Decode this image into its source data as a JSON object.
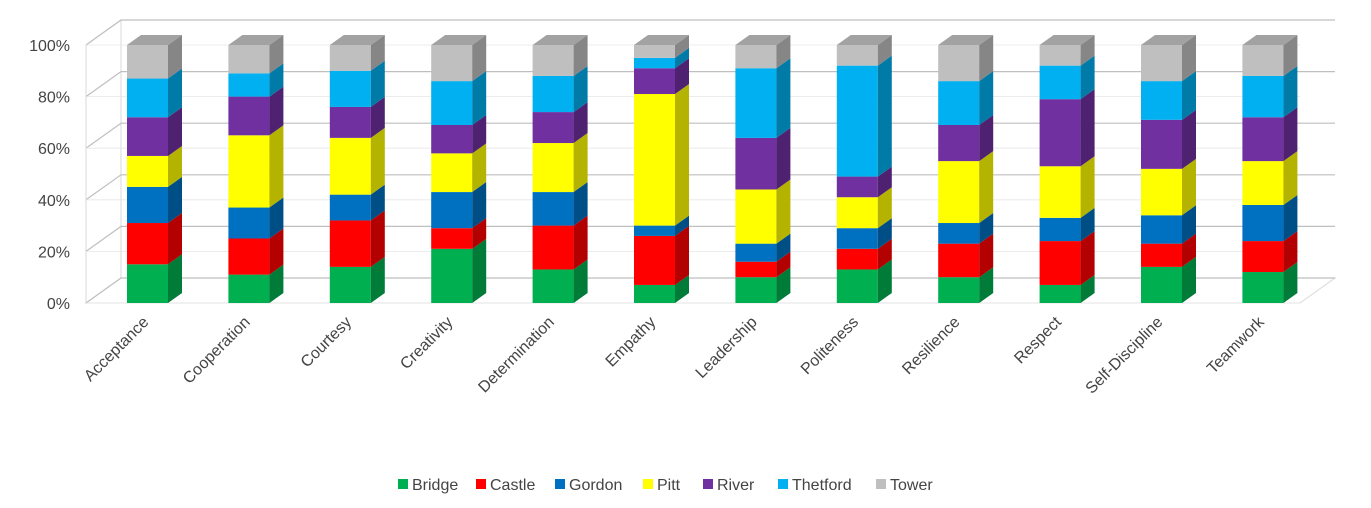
{
  "chart_data": {
    "type": "bar",
    "stacked": true,
    "percent": true,
    "style": "3d-column",
    "categories": [
      "Acceptance",
      "Cooperation",
      "Courtesy",
      "Creativity",
      "Determination",
      "Empathy",
      "Leadership",
      "Politeness",
      "Resilience",
      "Respect",
      "Self-Discipline",
      "Teamwork"
    ],
    "series": [
      {
        "name": "Bridge",
        "color": "#00B050",
        "values": [
          15,
          11,
          14,
          21,
          13,
          7,
          10,
          13,
          10,
          7,
          14,
          12
        ]
      },
      {
        "name": "Castle",
        "color": "#FF0000",
        "values": [
          16,
          14,
          18,
          8,
          17,
          19,
          6,
          8,
          13,
          17,
          9,
          12
        ]
      },
      {
        "name": "Gordon",
        "color": "#0070C0",
        "values": [
          14,
          12,
          10,
          14,
          13,
          4,
          7,
          8,
          8,
          9,
          11,
          14
        ]
      },
      {
        "name": "Pitt",
        "color": "#FFFF00",
        "values": [
          12,
          28,
          22,
          15,
          19,
          51,
          21,
          12,
          24,
          20,
          18,
          17
        ]
      },
      {
        "name": "River",
        "color": "#7030A0",
        "values": [
          15,
          15,
          12,
          11,
          12,
          10,
          20,
          8,
          14,
          26,
          19,
          17
        ]
      },
      {
        "name": "Thetford",
        "color": "#00B0F0",
        "values": [
          15,
          9,
          14,
          17,
          14,
          4,
          27,
          43,
          17,
          13,
          15,
          16
        ]
      },
      {
        "name": "Tower",
        "color": "#BFBFBF",
        "values": [
          13,
          11,
          10,
          14,
          12,
          5,
          9,
          8,
          14,
          8,
          14,
          12
        ]
      }
    ],
    "ylim": [
      0,
      100
    ],
    "yticks": [
      "0%",
      "20%",
      "40%",
      "60%",
      "80%",
      "100%"
    ],
    "grid": true,
    "legend": "bottom"
  }
}
